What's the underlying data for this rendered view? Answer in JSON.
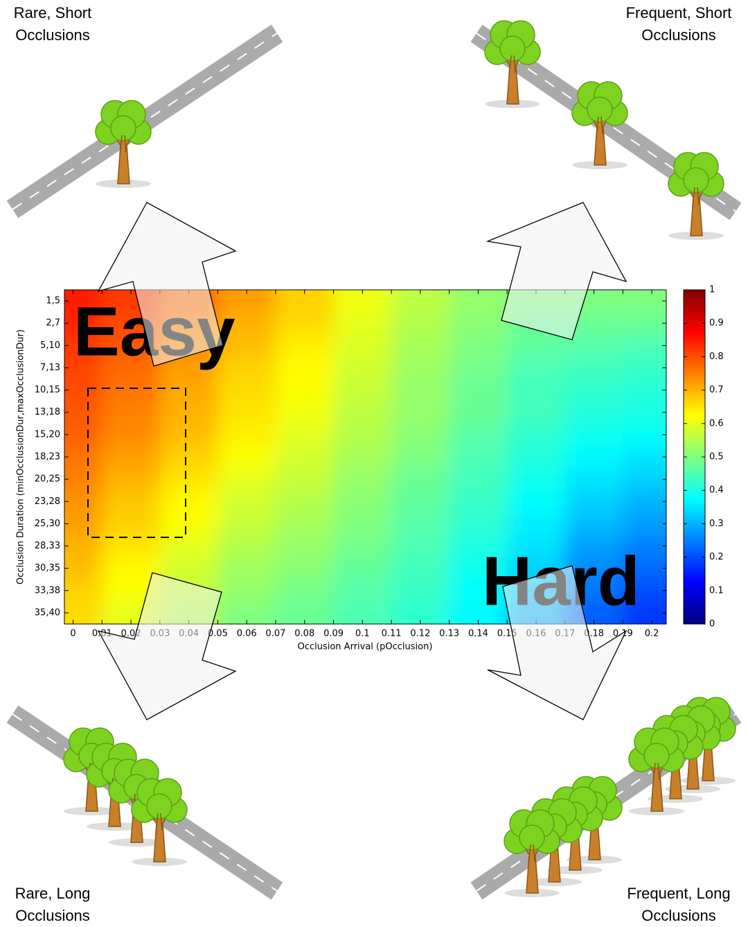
{
  "chart_data": {
    "type": "heatmap",
    "x_label": "Occlusion Arrival (pOcclusion)",
    "y_label": "Occlusion Duration (minOcclusionDur,maxOcclusionDur)",
    "x": [
      0,
      0.02,
      0.04,
      0.06,
      0.08,
      0.1,
      0.12,
      0.14,
      0.16,
      0.18,
      0.2
    ],
    "xlim": [
      -0.003,
      0.205
    ],
    "xticks": [
      0,
      0.01,
      0.02,
      0.03,
      0.04,
      0.05,
      0.06,
      0.07,
      0.08,
      0.09,
      0.1,
      0.11,
      0.12,
      0.13,
      0.14,
      0.15,
      0.16,
      0.17,
      0.18,
      0.19,
      0.2
    ],
    "categories": [
      "1,5",
      "2,7",
      "5,10",
      "7,13",
      "10,15",
      "13,18",
      "15,20",
      "18,23",
      "20,25",
      "23,28",
      "25,30",
      "28,33",
      "30,35",
      "33,38",
      "35,40"
    ],
    "z": [
      [
        0.85,
        0.82,
        0.77,
        0.72,
        0.67,
        0.61,
        0.56,
        0.52,
        0.5,
        0.5,
        0.5
      ],
      [
        0.84,
        0.8,
        0.75,
        0.7,
        0.66,
        0.6,
        0.55,
        0.51,
        0.48,
        0.48,
        0.48
      ],
      [
        0.82,
        0.79,
        0.74,
        0.69,
        0.64,
        0.59,
        0.54,
        0.5,
        0.47,
        0.46,
        0.45
      ],
      [
        0.81,
        0.77,
        0.72,
        0.67,
        0.63,
        0.58,
        0.53,
        0.49,
        0.45,
        0.44,
        0.43
      ],
      [
        0.8,
        0.76,
        0.71,
        0.66,
        0.62,
        0.57,
        0.52,
        0.48,
        0.44,
        0.42,
        0.41
      ],
      [
        0.79,
        0.75,
        0.7,
        0.65,
        0.61,
        0.56,
        0.52,
        0.48,
        0.44,
        0.41,
        0.4
      ],
      [
        0.78,
        0.74,
        0.69,
        0.64,
        0.6,
        0.55,
        0.51,
        0.46,
        0.42,
        0.39,
        0.38
      ],
      [
        0.76,
        0.72,
        0.67,
        0.62,
        0.58,
        0.54,
        0.5,
        0.45,
        0.41,
        0.37,
        0.35
      ],
      [
        0.75,
        0.7,
        0.65,
        0.6,
        0.57,
        0.52,
        0.48,
        0.44,
        0.39,
        0.35,
        0.33
      ],
      [
        0.73,
        0.68,
        0.63,
        0.58,
        0.55,
        0.51,
        0.47,
        0.43,
        0.38,
        0.33,
        0.3
      ],
      [
        0.72,
        0.67,
        0.62,
        0.57,
        0.54,
        0.5,
        0.46,
        0.42,
        0.36,
        0.31,
        0.28
      ],
      [
        0.7,
        0.65,
        0.6,
        0.55,
        0.52,
        0.49,
        0.45,
        0.4,
        0.35,
        0.28,
        0.25
      ],
      [
        0.69,
        0.63,
        0.58,
        0.53,
        0.51,
        0.47,
        0.44,
        0.39,
        0.33,
        0.26,
        0.23
      ],
      [
        0.67,
        0.62,
        0.57,
        0.52,
        0.49,
        0.46,
        0.43,
        0.38,
        0.32,
        0.24,
        0.2
      ],
      [
        0.66,
        0.6,
        0.55,
        0.5,
        0.48,
        0.45,
        0.42,
        0.37,
        0.3,
        0.22,
        0.18
      ]
    ],
    "colormap": "jet",
    "colorbar": {
      "lim": [
        0,
        1
      ],
      "ticks": [
        0,
        0.1,
        0.2,
        0.3,
        0.4,
        0.5,
        0.6,
        0.7,
        0.8,
        0.9,
        1
      ]
    },
    "annotations": [
      "Easy",
      "Hard"
    ],
    "corner_labels": {
      "top_left": [
        "Rare, Short",
        "Occlusions"
      ],
      "top_right": [
        "Frequent, Short",
        "Occlusions"
      ],
      "bottom_left": [
        "Rare, Long",
        "Occlusions"
      ],
      "bottom_right": [
        "Frequent, Long",
        "Occlusions"
      ]
    }
  }
}
